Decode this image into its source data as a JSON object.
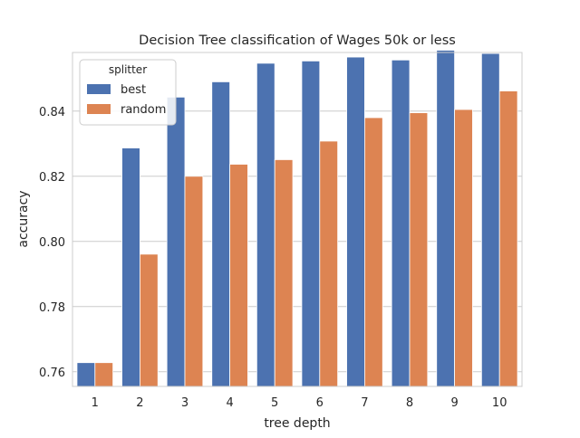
{
  "chart_data": {
    "type": "bar",
    "title": "Decision Tree classification of Wages 50k or less",
    "xlabel": "tree depth",
    "ylabel": "accuracy",
    "categories": [
      "1",
      "2",
      "3",
      "4",
      "5",
      "6",
      "7",
      "8",
      "9",
      "10"
    ],
    "series": [
      {
        "name": "best",
        "color": "#4c72b0",
        "values": [
          0.7628,
          0.8287,
          0.8443,
          0.849,
          0.8547,
          0.8554,
          0.8566,
          0.8557,
          0.8587,
          0.8577
        ]
      },
      {
        "name": "random",
        "color": "#dd8452",
        "values": [
          0.7628,
          0.7961,
          0.82,
          0.8237,
          0.8251,
          0.8308,
          0.838,
          0.8395,
          0.8405,
          0.8462
        ]
      }
    ],
    "ylim": [
      0.7555,
      0.858
    ],
    "yticks": [
      "0.76",
      "0.78",
      "0.80",
      "0.82",
      "0.84"
    ],
    "legend": {
      "title": "splitter",
      "placement": "top-left"
    },
    "grid": "horizontal",
    "axes_color": "#cccccc",
    "grid_color": "#cccccc"
  }
}
